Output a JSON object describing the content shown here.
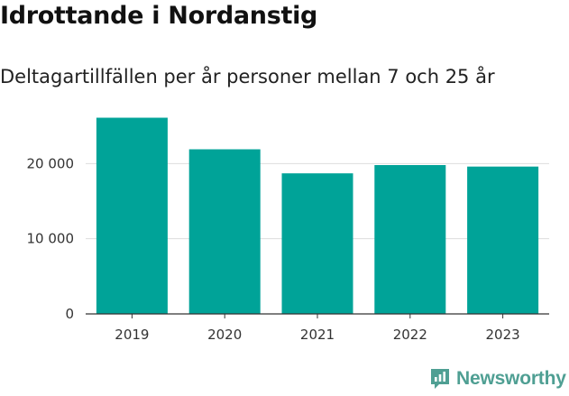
{
  "chart_data": {
    "type": "bar",
    "title": "Idrottande i Nordanstig",
    "subtitle": "Deltagartillfällen per år personer mellan 7 och 25 år",
    "categories": [
      "2019",
      "2020",
      "2021",
      "2022",
      "2023"
    ],
    "values": [
      26100,
      21900,
      18700,
      19800,
      19600
    ],
    "ylim": [
      0,
      27000
    ],
    "yticks": [
      {
        "value": 0,
        "label": "0"
      },
      {
        "value": 10000,
        "label": "10 000"
      },
      {
        "value": 20000,
        "label": "20 000"
      }
    ],
    "grid": true,
    "bar_color": "#00a398",
    "grid_color": "#dddddd",
    "axis_color": "#333333"
  },
  "brand": {
    "name": "Newsworthy",
    "icon": "newsworthy-logo-icon",
    "color": "#4f9f93"
  }
}
